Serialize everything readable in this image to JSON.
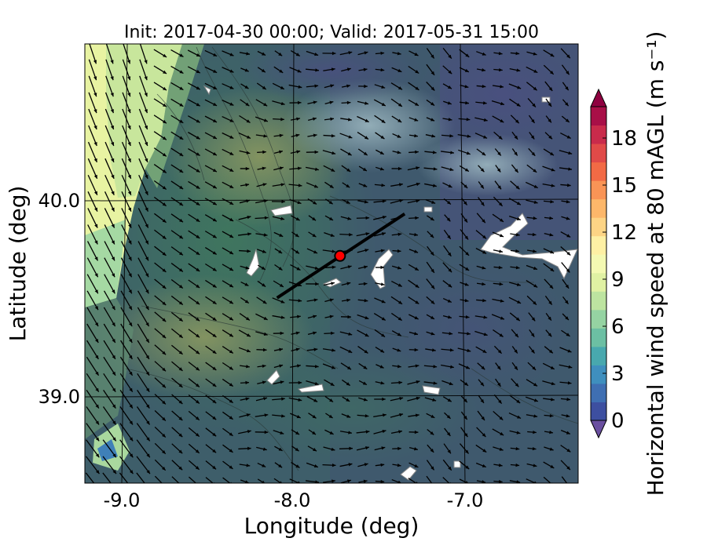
{
  "title": "Init: 2017-04-30 00:00; Valid: 2017-05-31 15:00",
  "chart_data": {
    "type": "heatmap",
    "title": "Init: 2017-04-30 00:00; Valid: 2017-05-31 15:00",
    "xlabel": "Longitude (deg)",
    "ylabel": "Latitude (deg)",
    "xlim": [
      -9.25,
      -6.35
    ],
    "ylim": [
      38.5,
      40.8
    ],
    "x_ticks": [
      -9.0,
      -8.0,
      -7.0
    ],
    "x_tick_labels": [
      "-9.0",
      "-8.0",
      "-7.0"
    ],
    "y_ticks": [
      39.0,
      40.0
    ],
    "y_tick_labels": [
      "39.0",
      "40.0"
    ],
    "grid": true,
    "vectors": "wind arrows (black)",
    "colorbar": {
      "label": "Horizontal wind speed at 80 mAGL (m s⁻¹)",
      "range": [
        0,
        20
      ],
      "ticks": [
        0,
        3,
        6,
        9,
        12,
        15,
        18
      ],
      "tick_labels": [
        "0",
        "3",
        "6",
        "9",
        "12",
        "15",
        "18"
      ],
      "extend": "both",
      "colors": [
        "#3d4fa0",
        "#3f6fb2",
        "#3f8fbe",
        "#48a8ae",
        "#6cbfa3",
        "#95d3a2",
        "#bde4a0",
        "#e0f1a3",
        "#f4f9b2",
        "#fef0a4",
        "#fdd485",
        "#fdb76a",
        "#f99456",
        "#f26a45",
        "#e04a48",
        "#c92b4b",
        "#a80f47"
      ]
    },
    "transect": {
      "start": {
        "lon": -8.12,
        "lat": 39.47
      },
      "end": {
        "lon": -7.37,
        "lat": 39.91
      },
      "marker": {
        "lon": -7.75,
        "lat": 39.69,
        "color": "#ff0000"
      }
    },
    "speed_field": [
      {
        "lon": -9.1,
        "lat": 40.6,
        "speed": 9.5
      },
      {
        "lon": -9.05,
        "lat": 40.2,
        "speed": 9.0
      },
      {
        "lon": -9.1,
        "lat": 39.8,
        "speed": 7.5
      },
      {
        "lon": -8.8,
        "lat": 40.6,
        "speed": 7.5
      },
      {
        "lon": -8.5,
        "lat": 40.0,
        "speed": 5.5
      },
      {
        "lon": -8.0,
        "lat": 40.5,
        "speed": 5.0
      },
      {
        "lon": -7.4,
        "lat": 40.4,
        "speed": 4.5
      },
      {
        "lon": -6.8,
        "lat": 40.5,
        "speed": 2.0
      },
      {
        "lon": -6.6,
        "lat": 40.0,
        "speed": 2.5
      },
      {
        "lon": -7.0,
        "lat": 39.4,
        "speed": 3.5
      },
      {
        "lon": -7.8,
        "lat": 39.2,
        "speed": 4.0
      },
      {
        "lon": -8.6,
        "lat": 39.1,
        "speed": 5.0
      },
      {
        "lon": -9.0,
        "lat": 38.8,
        "speed": 2.5
      },
      {
        "lon": -6.5,
        "lat": 38.8,
        "speed": 2.0
      }
    ]
  }
}
